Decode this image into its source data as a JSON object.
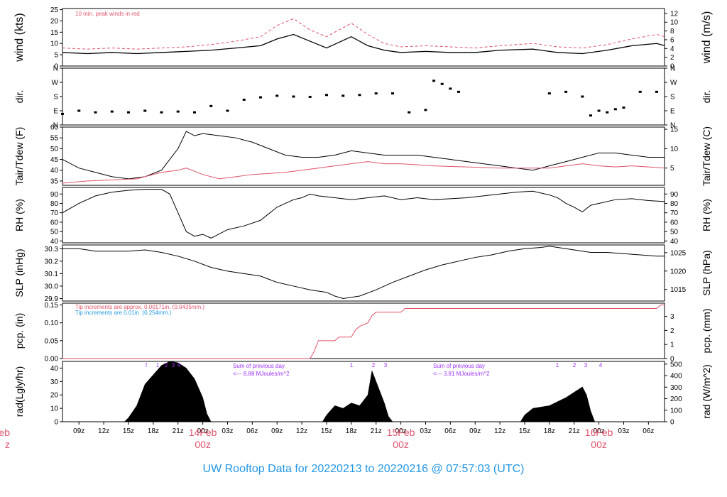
{
  "chart_data": {
    "type": "line",
    "title": "UW Rooftop Data for 20220213  to  20220216 @ 07:57:03  (UTC)",
    "x_ticks": [
      "09z",
      "12z",
      "15z",
      "18z",
      "21z",
      "00z",
      "03z",
      "06z",
      "09z",
      "12z",
      "15z",
      "18z",
      "21z",
      "00z",
      "03z",
      "06z",
      "09z",
      "12z",
      "15z",
      "18z",
      "21z",
      "00z",
      "03z",
      "06z"
    ],
    "x_ticks_hours": [
      9,
      12,
      15,
      18,
      21,
      24,
      27,
      30,
      33,
      36,
      39,
      42,
      45,
      48,
      51,
      54,
      57,
      60,
      63,
      66,
      69,
      72,
      75,
      78
    ],
    "x_range_hours": [
      7,
      79.95
    ],
    "day_labels": [
      {
        "date": "14Feb",
        "time": "00z",
        "hour": 24
      },
      {
        "date": "15Feb",
        "time": "00z",
        "hour": 48
      },
      {
        "date": "16Feb",
        "time": "00z",
        "hour": 72
      },
      {
        "date": "eb",
        "time": "z",
        "hour": 0
      }
    ],
    "panels": [
      {
        "id": "wind",
        "ylabel_left": "wind (kts)",
        "ylabel_right": "wind (m/s)",
        "ylim": [
          0,
          25.5
        ],
        "yticks_left": [
          0,
          5,
          10,
          15,
          20,
          25
        ],
        "yticks_right": [
          0,
          2,
          4,
          6,
          8,
          10,
          12
        ],
        "right_scale": 0.5144,
        "annotation": "10 min. peak winds in red",
        "series": [
          {
            "values_x": [
              7,
              10,
              13,
              16,
              19,
              22,
              25,
              28,
              31,
              33,
              35,
              37,
              39,
              42,
              44,
              46,
              48,
              51,
              54,
              57,
              60,
              64,
              67,
              70,
              73,
              76,
              79,
              80
            ],
            "values_y": [
              6,
              5.5,
              6,
              5.5,
              6,
              6.5,
              7,
              8,
              9,
              12,
              14,
              11,
              8,
              13,
              9,
              7,
              6,
              6.5,
              6,
              6,
              7,
              7.5,
              6,
              5.5,
              7,
              9,
              10,
              9
            ]
          },
          {
            "values_x": [
              7,
              10,
              13,
              16,
              19,
              22,
              25,
              28,
              31,
              33,
              35,
              37,
              39,
              42,
              44,
              46,
              48,
              51,
              54,
              57,
              60,
              64,
              67,
              70,
              73,
              76,
              79,
              80
            ],
            "values_y": [
              8,
              7.5,
              8,
              7.5,
              8,
              8.5,
              9.5,
              11,
              13,
              18,
              21,
              16,
              13,
              19,
              14,
              10,
              8.5,
              9,
              8.5,
              8,
              9,
              10,
              8.5,
              8,
              9.5,
              12,
              14,
              13
            ]
          }
        ]
      },
      {
        "id": "dir",
        "ylabel_left": "dir.",
        "ylabel_right": "dir.",
        "yticks_labels": [
          "N",
          "E",
          "S",
          "W",
          "N"
        ],
        "ylim": [
          0,
          360
        ],
        "series": [
          {
            "values_x": [
              7,
              9,
              11,
              13,
              15,
              17,
              19,
              21,
              23,
              25,
              27,
              29,
              31,
              33,
              35,
              37,
              39,
              41,
              43,
              45,
              47,
              49,
              51,
              52,
              53,
              54,
              55,
              66,
              68,
              70,
              71,
              72,
              73,
              74,
              75,
              77,
              79
            ],
            "values_y": [
              70,
              90,
              80,
              85,
              80,
              90,
              80,
              85,
              80,
              120,
              90,
              160,
              175,
              185,
              180,
              178,
              190,
              185,
              190,
              200,
              200,
              80,
              95,
              280,
              260,
              230,
              210,
              200,
              210,
              180,
              60,
              90,
              80,
              100,
              110,
              210,
              210
            ]
          }
        ]
      },
      {
        "id": "temp",
        "ylabel_left": "Tair/Tdew (F)",
        "ylabel_right": "Tair/Tdew (C)",
        "ylim": [
          33,
          60
        ],
        "yticks_left": [
          35,
          40,
          45,
          50,
          55,
          60
        ],
        "yticks_right": [
          5,
          10,
          15
        ],
        "series": [
          {
            "name": "Tair",
            "values_x": [
              7,
              9,
              11,
              13,
              15,
              17,
              19,
              21,
              22,
              23,
              24,
              26,
              28,
              30,
              32,
              34,
              36,
              38,
              40,
              42,
              44,
              46,
              48,
              50,
              52,
              54,
              56,
              58,
              60,
              62,
              64,
              66,
              68,
              70,
              72,
              74,
              76,
              78,
              80
            ],
            "values_y": [
              45,
              41,
              39,
              37,
              36,
              37,
              40,
              50,
              58,
              56,
              57,
              56,
              55,
              53,
              50,
              47,
              46,
              46,
              47,
              49,
              48,
              47,
              47,
              47,
              46,
              45,
              44,
              43,
              42,
              41,
              40,
              42,
              44,
              46,
              48,
              48,
              47,
              46,
              46
            ]
          },
          {
            "name": "Tdew",
            "values_x": [
              7,
              10,
              13,
              16,
              19,
              21,
              22,
              24,
              26,
              28,
              30,
              34,
              38,
              40,
              42,
              44,
              46,
              48,
              52,
              56,
              60,
              64,
              66,
              68,
              70,
              72,
              74,
              76,
              78,
              80
            ],
            "values_y": [
              34,
              35,
              35.5,
              36,
              39,
              40,
              41,
              38,
              36,
              37,
              38,
              39,
              41,
              42,
              43,
              44,
              43,
              43,
              42,
              41.5,
              41,
              41,
              41,
              42,
              43,
              42,
              41.5,
              42,
              41.5,
              41
            ]
          }
        ]
      },
      {
        "id": "rh",
        "ylabel_left": "RH (%)",
        "ylabel_right": "RH (%)",
        "ylim": [
          38,
          97
        ],
        "yticks_left": [
          40,
          50,
          60,
          70,
          80,
          90
        ],
        "yticks_right": [
          40,
          50,
          60,
          70,
          80,
          90
        ],
        "series": [
          {
            "values_x": [
              7,
              9,
              11,
              13,
              15,
              17,
              19,
              20,
              21,
              22,
              23,
              24,
              25,
              27,
              29,
              31,
              33,
              35,
              36,
              37,
              38,
              40,
              42,
              44,
              46,
              48,
              50,
              52,
              54,
              56,
              58,
              60,
              62,
              64,
              66,
              67,
              68,
              69,
              70,
              71,
              72,
              74,
              76,
              78,
              80
            ],
            "values_y": [
              70,
              80,
              88,
              92,
              94,
              95,
              95,
              90,
              70,
              50,
              45,
              47,
              43,
              52,
              56,
              62,
              76,
              84,
              86,
              90,
              88,
              86,
              84,
              86,
              88,
              84,
              86,
              84,
              85,
              86,
              88,
              90,
              92,
              93,
              89,
              86,
              80,
              76,
              71,
              78,
              80,
              84,
              85,
              83,
              82
            ]
          }
        ]
      },
      {
        "id": "slp",
        "ylabel_left": "SLP (inHg)",
        "ylabel_right": "SLP (hPa)",
        "ylim": [
          29.88,
          30.33
        ],
        "yticks_left": [
          29.9,
          30.0,
          30.1,
          30.2,
          30.3
        ],
        "yticks_right": [
          1015,
          1020,
          1025
        ],
        "series": [
          {
            "values_x": [
              7,
              9,
              11,
              13,
              15,
              17,
              19,
              21,
              23,
              25,
              27,
              29,
              31,
              33,
              35,
              37,
              39,
              40,
              41,
              43,
              45,
              47,
              49,
              51,
              53,
              55,
              57,
              59,
              61,
              63,
              65,
              66,
              67,
              69,
              71,
              73,
              75,
              77,
              79,
              80
            ],
            "values_y": [
              30.3,
              30.3,
              30.28,
              30.28,
              30.28,
              30.29,
              30.27,
              30.24,
              30.2,
              30.15,
              30.12,
              30.1,
              30.08,
              30.03,
              30.0,
              29.97,
              29.95,
              29.92,
              29.9,
              29.92,
              29.97,
              30.03,
              30.08,
              30.13,
              30.17,
              30.2,
              30.23,
              30.25,
              30.28,
              30.3,
              30.31,
              30.32,
              30.31,
              30.29,
              30.27,
              30.27,
              30.26,
              30.25,
              30.24,
              30.24
            ]
          }
        ]
      },
      {
        "id": "pcp",
        "ylabel_left": "pcp. (in)",
        "ylabel_right": "pcp. (mm)",
        "ylim": [
          0,
          0.155
        ],
        "yticks_left": [
          0.0,
          0.05,
          0.1,
          0.15
        ],
        "yticks_right": [
          0,
          1,
          2,
          3
        ],
        "annotations": [
          {
            "text": "Tip increments are approx. 0.00171in. (0.0435mm.)",
            "color": "#df536b"
          },
          {
            "text": "Tip increments are 0.01in. (0.254mm.)",
            "color": "#2297e6"
          }
        ],
        "series": [
          {
            "values_x": [
              7,
              37,
              37.5,
              38,
              40,
              40.5,
              42,
              42.5,
              43,
              44,
              44.5,
              45,
              48,
              48.5,
              78,
              79,
              79.5,
              80
            ],
            "values_y": [
              0,
              0,
              0.02,
              0.05,
              0.05,
              0.06,
              0.06,
              0.08,
              0.09,
              0.1,
              0.12,
              0.13,
              0.13,
              0.14,
              0.14,
              0.14,
              0.15,
              0.15
            ]
          }
        ]
      },
      {
        "id": "rad",
        "ylabel_left": "rad(Lgly/hr)",
        "ylabel_right": "rad (W/m^2)",
        "ylim": [
          0,
          45
        ],
        "yticks_left": [
          0,
          10,
          20,
          30,
          40
        ],
        "yticks_right": [
          0,
          100,
          200,
          300,
          400,
          500
        ],
        "annotations": [
          {
            "text": "Sum of previous day",
            "color": "#9b30ff"
          },
          {
            "text": "<--- 8.88 MJoules/m^2",
            "color": "#9b30ff"
          },
          {
            "text": "Sum of previous day",
            "color": "#9b30ff"
          },
          {
            "text": "<--- 3.81 MJoules/m^2",
            "color": "#9b30ff"
          }
        ],
        "marker_labels": [
          "f",
          "1",
          "2",
          "3",
          "4",
          "1",
          "2",
          "3",
          "1",
          "2",
          "3",
          "4"
        ],
        "series": [
          {
            "values_x": [
              7,
              14.5,
              15,
              16,
              17,
              18,
              19,
              20,
              21,
              22,
              23,
              24,
              24.5,
              25,
              38.5,
              39,
              40,
              41,
              42,
              43,
              44,
              44.5,
              45,
              46,
              46.5,
              47,
              62.5,
              63,
              64,
              65,
              66,
              67,
              68,
              69,
              70,
              70.5,
              71,
              71.5
            ],
            "values_y": [
              0,
              0,
              3,
              12,
              28,
              35,
              42,
              45,
              44,
              40,
              32,
              18,
              6,
              0,
              0,
              5,
              12,
              10,
              14,
              12,
              20,
              38,
              30,
              14,
              4,
              0,
              0,
              5,
              10,
              11,
              12,
              15,
              18,
              22,
              26,
              20,
              8,
              0
            ]
          }
        ]
      }
    ]
  }
}
